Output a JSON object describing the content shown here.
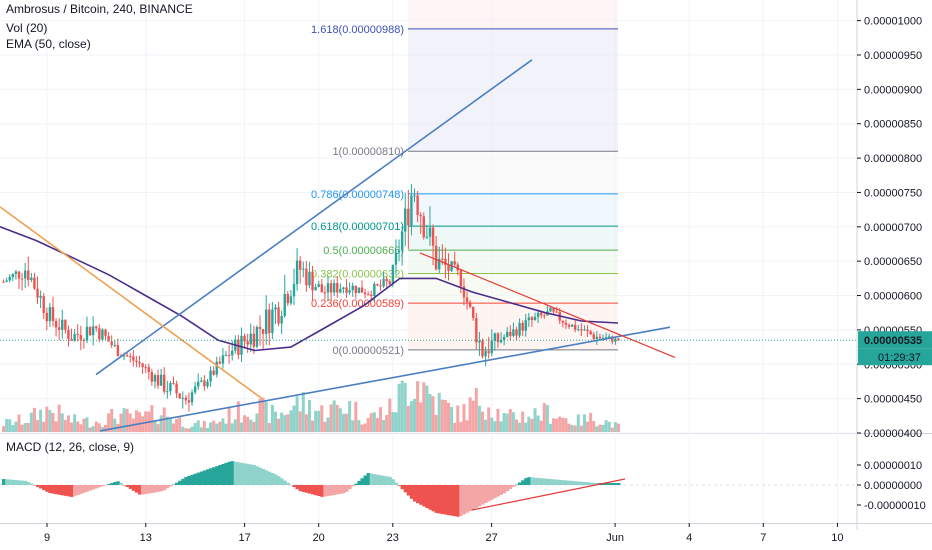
{
  "header": {
    "symbol_line": "Ambrosus / Bitcoin, 240, BINANCE",
    "vol_line": "Vol (20)",
    "ema_line": "EMA (50, close)",
    "macd_line": "MACD (12, 26, close, 9)"
  },
  "colors": {
    "up": "#26a69a",
    "down": "#ef5350",
    "up_volume": "#8fd3cb",
    "down_volume": "#f4a6a6",
    "ema": "#4a2d8a",
    "trendline_blue": "#4a7fc1",
    "trendline_orange": "#f0a050",
    "trendline_red": "#e53935",
    "price_marker": "#2962ff"
  },
  "chart_data": [
    {
      "type": "candlestick",
      "symbol": "Ambrosus / Bitcoin",
      "interval": "240",
      "exchange": "BINANCE",
      "ylim": [
        4e-06,
        1.03e-05
      ],
      "x_ticks": [
        {
          "label": "9",
          "day": 0
        },
        {
          "label": "13",
          "day": 4
        },
        {
          "label": "17",
          "day": 8
        },
        {
          "label": "20",
          "day": 11
        },
        {
          "label": "23",
          "day": 14
        },
        {
          "label": "27",
          "day": 18
        },
        {
          "label": "Jun",
          "day": 23
        },
        {
          "label": "4",
          "day": 26
        },
        {
          "label": "7",
          "day": 29
        },
        {
          "label": "10",
          "day": 32
        }
      ],
      "y_ticks": [
        "0.00001000",
        "0.00000950",
        "0.00000900",
        "0.00000850",
        "0.00000800",
        "0.00000750",
        "0.00000700",
        "0.00000650",
        "0.00000600",
        "0.00000550",
        "0.00000500",
        "0.00000450",
        "0.00000400"
      ],
      "ohlc_path": [
        [
          6.2e-06,
          6.4e-06,
          6.1e-06
        ],
        [
          6.4e-06,
          7e-06,
          6e-06
        ],
        [
          5.7e-06,
          6e-06,
          5.1e-06
        ],
        [
          5.4e-06,
          5.75e-06,
          5e-06
        ],
        [
          5.55e-06,
          6e-06,
          5.15e-06
        ],
        [
          5.2e-06,
          5.45e-06,
          4.95e-06
        ],
        [
          5e-06,
          5.2e-06,
          4.75e-06
        ],
        [
          4.7e-06,
          5.2e-06,
          4.4e-06
        ],
        [
          4.5e-06,
          4.9e-06,
          4.1e-06
        ],
        [
          4.8e-06,
          5e-06,
          4.55e-06
        ],
        [
          5.2e-06,
          5.6e-06,
          4.8e-06
        ],
        [
          5.45e-06,
          6.2e-06,
          5.1e-06
        ],
        [
          5.8e-06,
          6.9e-06,
          5.4e-06
        ],
        [
          6.4e-06,
          7.2e-06,
          5.95e-06
        ],
        [
          6.05e-06,
          6.4e-06,
          5.75e-06
        ],
        [
          6.15e-06,
          6.4e-06,
          5.8e-06
        ],
        [
          6.05e-06,
          6.3e-06,
          5.85e-06
        ],
        [
          6.2e-06,
          6.6e-06,
          6e-06
        ],
        [
          7.6e-06,
          8.15e-06,
          6.2e-06
        ],
        [
          6.5e-06,
          7.7e-06,
          6.3e-06
        ],
        [
          6.3e-06,
          6.5e-06,
          6e-06
        ],
        [
          5.2e-06,
          6.4e-06,
          5.1e-06
        ],
        [
          5.4e-06,
          5.6e-06,
          5.15e-06
        ],
        [
          5.6e-06,
          5.9e-06,
          5.3e-06
        ],
        [
          5.75e-06,
          5.9e-06,
          5.45e-06
        ],
        [
          5.55e-06,
          5.8e-06,
          5.4e-06
        ],
        [
          5.4e-06,
          5.7e-06,
          5.25e-06
        ],
        [
          5.35e-06,
          5.45e-06,
          5.25e-06
        ]
      ],
      "ema_path": [
        7e-06,
        6.8e-06,
        6.55e-06,
        6.3e-06,
        6e-06,
        5.7e-06,
        5.35e-06,
        5.2e-06,
        5.25e-06,
        5.55e-06,
        5.85e-06,
        6.25e-06,
        6.25e-06,
        6.05e-06,
        5.9e-06,
        5.75e-06,
        5.63e-06,
        5.6e-06
      ],
      "volume_path": [
        0.15,
        0.22,
        0.4,
        0.2,
        0.18,
        0.3,
        0.25,
        0.35,
        0.15,
        0.12,
        0.3,
        0.45,
        0.28,
        0.52,
        0.35,
        0.48,
        0.25,
        0.4,
        1.0,
        0.55,
        0.3,
        0.6,
        0.25,
        0.3,
        0.35,
        0.18,
        0.25,
        0.1
      ],
      "fibonacci": [
        {
          "ratio": 1.618,
          "label": "1.618(0.00000988)",
          "price": 9.88e-06,
          "color": "#3f51b5"
        },
        {
          "ratio": 1,
          "label": "1(0.00000810)",
          "price": 8.1e-06,
          "color": "#787b86"
        },
        {
          "ratio": 0.786,
          "label": "0.786(0.00000748)",
          "price": 7.48e-06,
          "color": "#2196f3"
        },
        {
          "ratio": 0.618,
          "label": "0.618(0.00000701)",
          "price": 7.01e-06,
          "color": "#009688"
        },
        {
          "ratio": 0.5,
          "label": "0.5(0.00000666)",
          "price": 6.66e-06,
          "color": "#4caf50"
        },
        {
          "ratio": 0.382,
          "label": "0.382(0.00000632)",
          "price": 6.32e-06,
          "color": "#8bc34a"
        },
        {
          "ratio": 0.236,
          "label": "0.236(0.00000589)",
          "price": 5.89e-06,
          "color": "#f44336"
        },
        {
          "ratio": 0,
          "label": "0(0.00000521)",
          "price": 5.21e-06,
          "color": "#787b86"
        }
      ],
      "current_price": "0.00000535",
      "countdown": "01:29:37"
    },
    {
      "type": "macd",
      "params": "12, 26, close, 9",
      "ylim": [
        -1.6e-07,
        1.6e-07
      ],
      "y_ticks": [
        "0.00000010",
        "0.00000000",
        "-0.00000010"
      ],
      "histogram_path": [
        0.03,
        0.02,
        -0.04,
        -0.06,
        -0.02,
        0.02,
        -0.05,
        -0.03,
        0.04,
        0.08,
        0.12,
        0.1,
        0.05,
        -0.03,
        -0.06,
        -0.04,
        0.06,
        0.04,
        -0.08,
        -0.14,
        -0.16,
        -0.1,
        -0.04,
        0.04,
        0.03,
        0.02,
        0.01,
        0.01
      ]
    }
  ]
}
